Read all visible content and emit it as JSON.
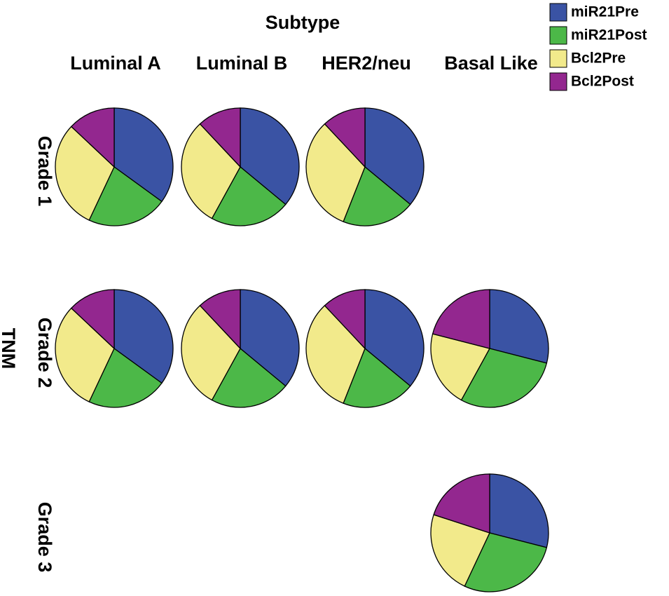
{
  "chart_data": {
    "type": "pie",
    "title": "Subtype",
    "row_title": "TNM",
    "columns": [
      "Luminal A",
      "Luminal B",
      "HER2/neu",
      "Basal Like"
    ],
    "rows": [
      "Grade 1",
      "Grade 2",
      "Grade 3"
    ],
    "series": [
      {
        "name": "miR21Pre",
        "color": "#3a53a4"
      },
      {
        "name": "miR21Post",
        "color": "#4cb848"
      },
      {
        "name": "Bcl2Pre",
        "color": "#f2ea8b"
      },
      {
        "name": "Bcl2Post",
        "color": "#93278f"
      }
    ],
    "cells": [
      [
        [
          35,
          22,
          30,
          13
        ],
        [
          36,
          22,
          30,
          12
        ],
        [
          36,
          20,
          32,
          12
        ],
        null
      ],
      [
        [
          35,
          22,
          30,
          13
        ],
        [
          36,
          22,
          30,
          12
        ],
        [
          36,
          20,
          32,
          12
        ],
        [
          29,
          29,
          21,
          21
        ]
      ],
      [
        null,
        null,
        null,
        [
          29,
          28,
          23,
          20
        ]
      ]
    ]
  }
}
